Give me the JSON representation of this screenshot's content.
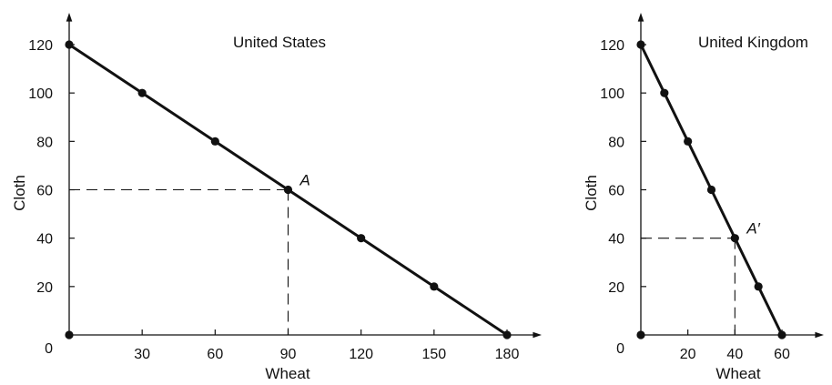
{
  "chart_data": [
    {
      "type": "line",
      "title": "United States",
      "xlabel": "Wheat",
      "ylabel": "Cloth",
      "origin_label": "0",
      "xlim": [
        0,
        180
      ],
      "ylim": [
        0,
        120
      ],
      "x_ticks": [
        30,
        60,
        90,
        120,
        150,
        180
      ],
      "y_ticks": [
        20,
        40,
        60,
        80,
        100,
        120
      ],
      "series": [
        {
          "x": [
            0,
            30,
            60,
            90,
            120,
            150,
            180
          ],
          "y": [
            120,
            100,
            80,
            60,
            40,
            20,
            0
          ]
        }
      ],
      "extra_points": [
        {
          "x": 0,
          "y": 0
        }
      ],
      "annotation": {
        "label": "A",
        "x": 90,
        "y": 60
      },
      "grid": false,
      "legend": "none"
    },
    {
      "type": "line",
      "title": "United Kingdom",
      "xlabel": "Wheat",
      "ylabel": "Cloth",
      "origin_label": "0",
      "xlim": [
        0,
        60
      ],
      "ylim": [
        0,
        120
      ],
      "x_ticks": [
        20,
        40,
        60
      ],
      "y_ticks": [
        20,
        40,
        60,
        80,
        100,
        120
      ],
      "series": [
        {
          "x": [
            0,
            10,
            20,
            30,
            40,
            50,
            60
          ],
          "y": [
            120,
            100,
            80,
            60,
            40,
            20,
            0
          ]
        }
      ],
      "marker_x": [
        0,
        10,
        20,
        30,
        40,
        50,
        60
      ],
      "extra_points": [
        {
          "x": 0,
          "y": 0
        }
      ],
      "annotation": {
        "label": "A′",
        "x": 40,
        "y": 40
      },
      "grid": false,
      "legend": "none"
    }
  ]
}
